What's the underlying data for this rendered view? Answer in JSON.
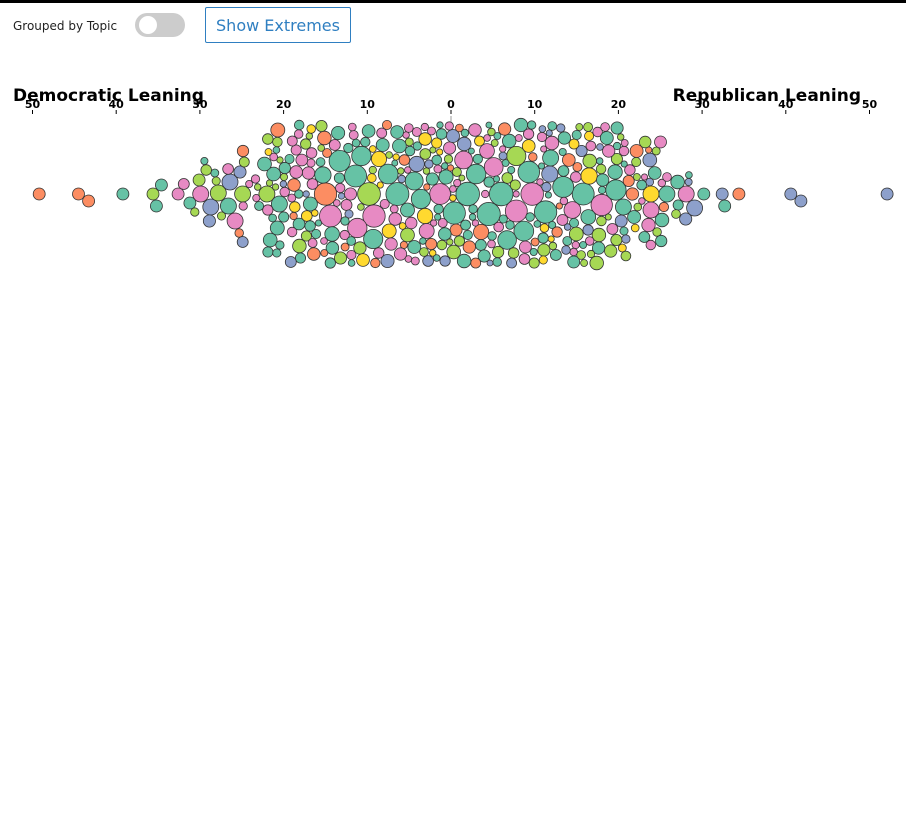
{
  "controls": {
    "grouped_label": "Grouped by Topic",
    "grouped_on": false,
    "extremes_label": "Show Extremes"
  },
  "chart_data": {
    "type": "scatter",
    "title": "",
    "left_label": "Democratic Leaning",
    "right_label": "Republican Leaning",
    "xlim": [
      -50,
      50
    ],
    "ticks": [
      {
        "value": -50,
        "label": "50"
      },
      {
        "value": -40,
        "label": "40"
      },
      {
        "value": -30,
        "label": "30"
      },
      {
        "value": -20,
        "label": "20"
      },
      {
        "value": -10,
        "label": "10"
      },
      {
        "value": 0,
        "label": "0"
      },
      {
        "value": 10,
        "label": "10"
      },
      {
        "value": 20,
        "label": "20"
      },
      {
        "value": 30,
        "label": "30"
      },
      {
        "value": 40,
        "label": "40"
      },
      {
        "value": 50,
        "label": "50"
      }
    ],
    "zero_line": true,
    "topic_colors": [
      "#66c2a5",
      "#e78ac3",
      "#a6d854",
      "#fc8d62",
      "#8da0cb",
      "#ffd92f"
    ],
    "points": [
      {
        "x": -49.2,
        "topic": 3
      },
      {
        "x": -44.5,
        "topic": 3
      },
      {
        "x": -43.3,
        "topic": 3
      },
      {
        "x": -39.2,
        "topic": 0
      },
      {
        "x": -35.6,
        "topic": 2
      },
      {
        "x": -35.2,
        "topic": 0
      },
      {
        "x": -34.6,
        "topic": 0
      },
      {
        "x": -32.6,
        "topic": 1
      },
      {
        "x": -31.2,
        "topic": 0
      },
      {
        "x": -30.1,
        "topic": 2
      },
      {
        "x": -29.9,
        "topic": 1
      },
      {
        "x": -28.7,
        "topic": 4
      },
      {
        "x": -27.8,
        "topic": 2
      },
      {
        "x": -26.6,
        "topic": 0
      },
      {
        "x": -26.4,
        "topic": 4
      },
      {
        "x": -25.8,
        "topic": 1
      },
      {
        "x": -24.9,
        "topic": 2
      },
      {
        "x": -22.0,
        "topic": 2
      },
      {
        "x": -20.5,
        "topic": 0
      },
      {
        "x": -16.8,
        "topic": 0
      },
      {
        "x": -15.3,
        "topic": 0
      },
      {
        "x": -15.0,
        "topic": 3
      },
      {
        "x": -14.4,
        "topic": 1
      },
      {
        "x": -14.2,
        "topic": 0
      },
      {
        "x": -13.3,
        "topic": 0
      },
      {
        "x": -11.4,
        "topic": 0
      },
      {
        "x": -11.2,
        "topic": 1
      },
      {
        "x": -10.7,
        "topic": 0
      },
      {
        "x": -9.8,
        "topic": 2
      },
      {
        "x": -9.3,
        "topic": 0
      },
      {
        "x": -9.2,
        "topic": 1
      },
      {
        "x": -8.6,
        "topic": 5
      },
      {
        "x": -7.5,
        "topic": 0
      },
      {
        "x": -6.4,
        "topic": 0
      },
      {
        "x": -5.2,
        "topic": 0
      },
      {
        "x": -4.4,
        "topic": 0
      },
      {
        "x": -4.1,
        "topic": 4
      },
      {
        "x": -3.6,
        "topic": 0
      },
      {
        "x": -3.1,
        "topic": 5
      },
      {
        "x": -2.9,
        "topic": 1
      },
      {
        "x": -1.3,
        "topic": 1
      },
      {
        "x": -0.6,
        "topic": 0
      },
      {
        "x": 0.4,
        "topic": 0
      },
      {
        "x": 1.5,
        "topic": 1
      },
      {
        "x": 2.0,
        "topic": 0
      },
      {
        "x": 3.0,
        "topic": 0
      },
      {
        "x": 3.6,
        "topic": 3
      },
      {
        "x": 4.3,
        "topic": 1
      },
      {
        "x": 4.5,
        "topic": 0
      },
      {
        "x": 5.1,
        "topic": 1
      },
      {
        "x": 6.0,
        "topic": 0
      },
      {
        "x": 6.7,
        "topic": 0
      },
      {
        "x": 7.8,
        "topic": 1
      },
      {
        "x": 7.8,
        "topic": 2
      },
      {
        "x": 8.7,
        "topic": 0
      },
      {
        "x": 9.3,
        "topic": 0
      },
      {
        "x": 9.7,
        "topic": 1
      },
      {
        "x": 11.3,
        "topic": 0
      },
      {
        "x": 11.8,
        "topic": 4
      },
      {
        "x": 11.9,
        "topic": 0
      },
      {
        "x": 13.4,
        "topic": 0
      },
      {
        "x": 14.5,
        "topic": 1
      },
      {
        "x": 15.8,
        "topic": 0
      },
      {
        "x": 16.4,
        "topic": 0
      },
      {
        "x": 16.5,
        "topic": 5
      },
      {
        "x": 18.0,
        "topic": 1
      },
      {
        "x": 19.6,
        "topic": 0
      },
      {
        "x": 19.7,
        "topic": 0
      },
      {
        "x": 20.6,
        "topic": 0
      },
      {
        "x": 23.9,
        "topic": 5
      },
      {
        "x": 23.9,
        "topic": 1
      },
      {
        "x": 25.8,
        "topic": 0
      },
      {
        "x": 28.1,
        "topic": 1
      },
      {
        "x": 29.1,
        "topic": 4
      },
      {
        "x": 30.2,
        "topic": 0
      },
      {
        "x": 32.4,
        "topic": 4
      },
      {
        "x": 32.7,
        "topic": 0
      },
      {
        "x": 34.4,
        "topic": 3
      },
      {
        "x": 40.6,
        "topic": 4
      },
      {
        "x": 41.8,
        "topic": 4
      },
      {
        "x": 52.1,
        "topic": 4
      }
    ]
  }
}
